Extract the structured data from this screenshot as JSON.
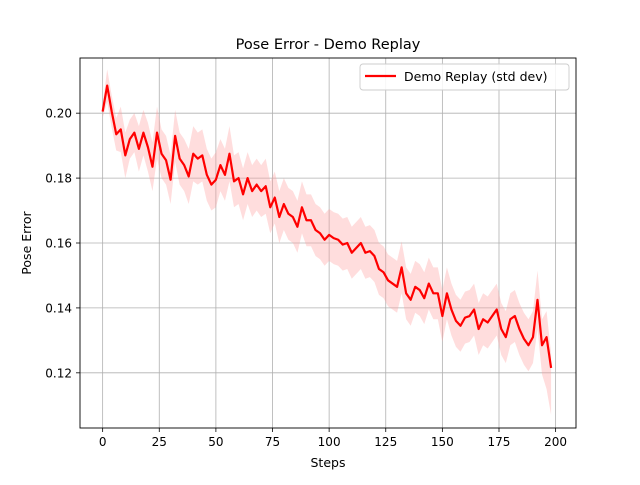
{
  "chart_data": {
    "type": "line",
    "title": "Pose Error - Demo Replay",
    "xlabel": "Steps",
    "ylabel": "Pose Error",
    "xlim": [
      -10,
      209
    ],
    "ylim": [
      0.103,
      0.217
    ],
    "xticks": [
      0,
      25,
      50,
      75,
      100,
      125,
      150,
      175,
      200
    ],
    "yticks": [
      0.12,
      0.14,
      0.16,
      0.18,
      0.2
    ],
    "xtick_labels": [
      "0",
      "25",
      "50",
      "75",
      "100",
      "125",
      "150",
      "175",
      "200"
    ],
    "ytick_labels": [
      "0.12",
      "0.14",
      "0.16",
      "0.18",
      "0.20"
    ],
    "grid": true,
    "legend": {
      "location": "upper right",
      "entries": [
        "Demo Replay (std dev)"
      ]
    },
    "series": [
      {
        "name": "Demo Replay (std dev)",
        "color": "#ff0000",
        "band_color": "#ff9f9f",
        "band": "std dev",
        "x": [
          0,
          2,
          4,
          6,
          8,
          10,
          12,
          14,
          16,
          18,
          20,
          22,
          24,
          26,
          28,
          30,
          32,
          34,
          36,
          38,
          40,
          42,
          44,
          46,
          48,
          50,
          52,
          54,
          56,
          58,
          60,
          62,
          64,
          66,
          68,
          70,
          72,
          74,
          76,
          78,
          80,
          82,
          84,
          86,
          88,
          90,
          92,
          94,
          96,
          98,
          100,
          102,
          104,
          106,
          108,
          110,
          112,
          114,
          116,
          118,
          120,
          122,
          124,
          126,
          128,
          130,
          132,
          134,
          136,
          138,
          140,
          142,
          144,
          146,
          148,
          150,
          152,
          154,
          156,
          158,
          160,
          162,
          164,
          166,
          168,
          170,
          172,
          174,
          176,
          178,
          180,
          182,
          184,
          186,
          188,
          190,
          192,
          194,
          196,
          198
        ],
        "y": [
          0.2005,
          0.2085,
          0.2005,
          0.1935,
          0.195,
          0.187,
          0.192,
          0.194,
          0.189,
          0.194,
          0.1895,
          0.1835,
          0.194,
          0.1875,
          0.1855,
          0.1795,
          0.193,
          0.186,
          0.184,
          0.1805,
          0.1875,
          0.186,
          0.187,
          0.181,
          0.178,
          0.1795,
          0.184,
          0.181,
          0.1875,
          0.179,
          0.18,
          0.175,
          0.18,
          0.176,
          0.178,
          0.176,
          0.1775,
          0.171,
          0.174,
          0.168,
          0.172,
          0.169,
          0.168,
          0.165,
          0.171,
          0.167,
          0.167,
          0.164,
          0.163,
          0.161,
          0.1625,
          0.1615,
          0.161,
          0.1595,
          0.16,
          0.157,
          0.1585,
          0.16,
          0.157,
          0.1575,
          0.156,
          0.152,
          0.151,
          0.1485,
          0.1475,
          0.1465,
          0.1525,
          0.1445,
          0.1425,
          0.1465,
          0.1455,
          0.143,
          0.1475,
          0.1445,
          0.1445,
          0.1375,
          0.1445,
          0.1395,
          0.136,
          0.1345,
          0.137,
          0.1375,
          0.1395,
          0.1335,
          0.1365,
          0.1355,
          0.1375,
          0.1395,
          0.1335,
          0.131,
          0.1365,
          0.1375,
          0.1335,
          0.1305,
          0.1285,
          0.131,
          0.1425,
          0.1285,
          0.131,
          0.1215
        ],
        "y_lower": [
          0.1985,
          0.2035,
          0.1955,
          0.1885,
          0.188,
          0.18,
          0.186,
          0.188,
          0.182,
          0.187,
          0.182,
          0.176,
          0.186,
          0.18,
          0.178,
          0.172,
          0.185,
          0.178,
          0.176,
          0.172,
          0.179,
          0.178,
          0.179,
          0.173,
          0.17,
          0.171,
          0.176,
          0.173,
          0.179,
          0.171,
          0.172,
          0.167,
          0.172,
          0.168,
          0.17,
          0.168,
          0.169,
          0.163,
          0.166,
          0.16,
          0.164,
          0.161,
          0.16,
          0.157,
          0.163,
          0.159,
          0.159,
          0.156,
          0.155,
          0.153,
          0.1545,
          0.1535,
          0.153,
          0.1515,
          0.152,
          0.149,
          0.1505,
          0.152,
          0.149,
          0.1495,
          0.148,
          0.144,
          0.143,
          0.1405,
          0.1395,
          0.1385,
          0.1445,
          0.1365,
          0.1345,
          0.1385,
          0.1375,
          0.135,
          0.1395,
          0.1365,
          0.1365,
          0.1295,
          0.1365,
          0.1315,
          0.128,
          0.1265,
          0.129,
          0.1295,
          0.1315,
          0.1255,
          0.1285,
          0.1275,
          0.1295,
          0.1315,
          0.1255,
          0.123,
          0.1285,
          0.1295,
          0.1255,
          0.1225,
          0.1205,
          0.123,
          0.1335,
          0.1195,
          0.115,
          0.107
        ],
        "y_upper": [
          0.2025,
          0.2135,
          0.2055,
          0.1985,
          0.202,
          0.194,
          0.198,
          0.2,
          0.196,
          0.201,
          0.197,
          0.191,
          0.202,
          0.195,
          0.193,
          0.187,
          0.201,
          0.194,
          0.192,
          0.189,
          0.196,
          0.194,
          0.195,
          0.189,
          0.186,
          0.188,
          0.192,
          0.189,
          0.196,
          0.187,
          0.188,
          0.183,
          0.188,
          0.184,
          0.186,
          0.184,
          0.186,
          0.179,
          0.182,
          0.176,
          0.18,
          0.177,
          0.176,
          0.173,
          0.179,
          0.175,
          0.175,
          0.172,
          0.171,
          0.169,
          0.1705,
          0.1695,
          0.169,
          0.1675,
          0.168,
          0.165,
          0.1665,
          0.168,
          0.165,
          0.1655,
          0.164,
          0.16,
          0.159,
          0.1565,
          0.1555,
          0.1545,
          0.1605,
          0.1525,
          0.1505,
          0.1545,
          0.1535,
          0.151,
          0.1555,
          0.1525,
          0.1525,
          0.1455,
          0.1525,
          0.1475,
          0.144,
          0.1425,
          0.145,
          0.1455,
          0.1475,
          0.1415,
          0.1445,
          0.1435,
          0.1455,
          0.1475,
          0.1415,
          0.139,
          0.1445,
          0.1455,
          0.1415,
          0.1385,
          0.1365,
          0.139,
          0.1515,
          0.1365,
          0.139,
          0.126
        ]
      }
    ]
  }
}
